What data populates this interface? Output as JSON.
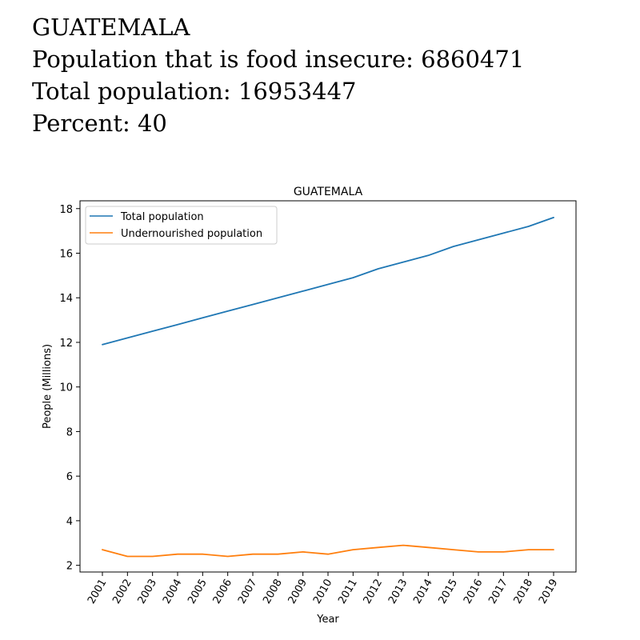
{
  "header": {
    "country": "GUATEMALA",
    "line_insecure": "Population that is food insecure: 6860471",
    "line_total": "Total population: 16953447",
    "line_percent": "Percent: 40"
  },
  "chart_data": {
    "type": "line",
    "title": "GUATEMALA",
    "xlabel": "Year",
    "ylabel": "People (Millions)",
    "ylim": [
      1.7,
      18.35
    ],
    "yticks": [
      2,
      4,
      6,
      8,
      10,
      12,
      14,
      16,
      18
    ],
    "x": [
      "2001",
      "2002",
      "2003",
      "2004",
      "2005",
      "2006",
      "2007",
      "2008",
      "2009",
      "2010",
      "2011",
      "2012",
      "2013",
      "2014",
      "2015",
      "2016",
      "2017",
      "2018",
      "2019"
    ],
    "series": [
      {
        "name": "Total population",
        "color": "#1f77b4",
        "values": [
          11.9,
          12.2,
          12.5,
          12.8,
          13.1,
          13.4,
          13.7,
          14.0,
          14.3,
          14.6,
          14.9,
          15.3,
          15.6,
          15.9,
          16.3,
          16.6,
          16.9,
          17.2,
          17.6
        ]
      },
      {
        "name": "Undernourished population",
        "color": "#ff7f0e",
        "values": [
          2.7,
          2.4,
          2.4,
          2.5,
          2.5,
          2.4,
          2.5,
          2.5,
          2.6,
          2.5,
          2.7,
          2.8,
          2.9,
          2.8,
          2.7,
          2.6,
          2.6,
          2.7,
          2.7
        ]
      }
    ],
    "legend": "top-left",
    "grid": false
  }
}
